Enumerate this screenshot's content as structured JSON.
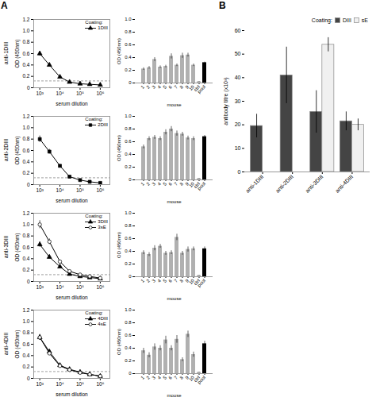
{
  "chart_data": [
    {
      "type": "line",
      "title": "anti-1DIII",
      "annotations": [
        "A"
      ],
      "x": [
        1000,
        3000,
        10000,
        30000,
        100000,
        300000,
        1000000
      ],
      "series": [
        {
          "name": "1DIII",
          "color": "#000000",
          "marker": "triangle",
          "values": [
            0.6,
            0.4,
            0.19,
            0.1,
            0.07,
            0.06,
            0.05
          ],
          "errors": [
            0.042,
            0.028,
            0.0133,
            0.007,
            0.0049,
            0.0042,
            0.0035
          ]
        }
      ],
      "cutoff": 0.12,
      "log": "x",
      "xlim": [
        500,
        3000000
      ],
      "xticks": [
        {
          "value": 1000,
          "label": "10³"
        },
        {
          "value": 10000,
          "label": "10⁴"
        },
        {
          "value": 100000,
          "label": "10⁵"
        },
        {
          "value": 1000000,
          "label": "10⁶"
        }
      ],
      "ylim": [
        0,
        1.2
      ],
      "yticks": [
        0,
        0.2,
        0.4,
        0.6,
        0.8,
        {
          "value": 1.0,
          "label": "1.0"
        },
        1.2
      ],
      "xlabel": "serum dilution",
      "ylabel": "OD (450nm)",
      "legend": "upper right",
      "legend_title": "Coating:"
    },
    {
      "type": "bar",
      "categories": [
        "1",
        "2",
        "3",
        "4",
        "5",
        "6",
        "7",
        "8",
        "9",
        "10",
        "ctrl",
        "pool"
      ],
      "values": [
        0.22,
        0.24,
        0.37,
        0.25,
        0.26,
        0.42,
        0.28,
        0.43,
        0.44,
        0.28,
        0.02,
        0.32
      ],
      "errors": [
        0.02,
        0.02,
        0.03,
        0.02,
        0.02,
        0.04,
        0.02,
        0.04,
        0.03,
        0.02,
        0.005,
        0.01
      ],
      "colors": [
        "#b0b0b0",
        "#b0b0b0",
        "#b0b0b0",
        "#b0b0b0",
        "#b0b0b0",
        "#b0b0b0",
        "#b0b0b0",
        "#b0b0b0",
        "#b0b0b0",
        "#b0b0b0",
        "#b0b0b0",
        "#000000"
      ],
      "ylim": [
        0,
        1.0
      ],
      "yticks": [
        0,
        0.2,
        0.4,
        0.6,
        0.8,
        {
          "value": 1.0,
          "label": "1.0"
        }
      ],
      "xlabel": "mouse",
      "ylabel": "OD (450nm)"
    },
    {
      "type": "line",
      "title": "anti-2DIII",
      "x": [
        1000,
        3000,
        10000,
        30000,
        100000,
        300000,
        1000000
      ],
      "series": [
        {
          "name": "2DIII",
          "color": "#000000",
          "marker": "square",
          "values": [
            0.8,
            0.58,
            0.33,
            0.14,
            0.08,
            0.05,
            0.03
          ],
          "errors": [
            0.056,
            0.0406,
            0.0231,
            0.0098,
            0.0056,
            0.0035,
            0.0021
          ]
        }
      ],
      "cutoff": 0.12,
      "log": "x",
      "xlim": [
        500,
        3000000
      ],
      "xticks": [
        {
          "value": 1000,
          "label": "10³"
        },
        {
          "value": 10000,
          "label": "10⁴"
        },
        {
          "value": 100000,
          "label": "10⁵"
        },
        {
          "value": 1000000,
          "label": "10⁶"
        }
      ],
      "ylim": [
        0,
        1.2
      ],
      "yticks": [
        0,
        0.2,
        0.4,
        0.6,
        0.8,
        {
          "value": 1.0,
          "label": "1.0"
        },
        1.2
      ],
      "xlabel": "serum dilution",
      "ylabel": "OD (450nm)",
      "legend": "upper right",
      "legend_title": "Coating:"
    },
    {
      "type": "bar",
      "categories": [
        "1",
        "2",
        "3",
        "4",
        "5",
        "6",
        "7",
        "8",
        "9",
        "10",
        "ctrl",
        "pool"
      ],
      "values": [
        0.52,
        0.65,
        0.67,
        0.65,
        0.75,
        0.8,
        0.73,
        0.72,
        0.66,
        0.65,
        0.02,
        0.68
      ],
      "errors": [
        0.03,
        0.03,
        0.03,
        0.03,
        0.04,
        0.04,
        0.04,
        0.03,
        0.03,
        0.03,
        0.005,
        0.02
      ],
      "colors": [
        "#b0b0b0",
        "#b0b0b0",
        "#b0b0b0",
        "#b0b0b0",
        "#b0b0b0",
        "#b0b0b0",
        "#b0b0b0",
        "#b0b0b0",
        "#b0b0b0",
        "#b0b0b0",
        "#b0b0b0",
        "#000000"
      ],
      "ylim": [
        0,
        1.0
      ],
      "yticks": [
        0,
        0.2,
        0.4,
        0.6,
        0.8,
        {
          "value": 1.0,
          "label": "1.0"
        }
      ],
      "xlabel": "mouse",
      "ylabel": "OD (450nm)"
    },
    {
      "type": "line",
      "title": "anti-3DIII",
      "x": [
        1000,
        3000,
        10000,
        30000,
        100000,
        300000,
        1000000
      ],
      "series": [
        {
          "name": "3DIII",
          "color": "#000000",
          "marker": "triangle",
          "values": [
            0.65,
            0.43,
            0.26,
            0.13,
            0.09,
            0.07,
            0.05
          ],
          "errors": [
            0.0455,
            0.0301,
            0.0182,
            0.0091,
            0.0063,
            0.0049,
            0.0035
          ]
        },
        {
          "name": "3sE",
          "color": "#000000",
          "marker": "circle-open",
          "values": [
            1.0,
            0.7,
            0.35,
            0.18,
            0.12,
            0.09,
            0.06
          ],
          "errors": [
            0.07,
            0.049,
            0.0245,
            0.0126,
            0.0084,
            0.0063,
            0.0042
          ]
        }
      ],
      "cutoff": 0.12,
      "log": "x",
      "xlim": [
        500,
        3000000
      ],
      "xticks": [
        {
          "value": 1000,
          "label": "10³"
        },
        {
          "value": 10000,
          "label": "10⁴"
        },
        {
          "value": 100000,
          "label": "10⁵"
        },
        {
          "value": 1000000,
          "label": "10⁶"
        }
      ],
      "ylim": [
        0,
        1.2
      ],
      "yticks": [
        0,
        0.2,
        0.4,
        0.6,
        0.8,
        {
          "value": 1.0,
          "label": "1.0"
        },
        1.2
      ],
      "xlabel": "serum dilution",
      "ylabel": "OD (450nm)",
      "legend": "upper right",
      "legend_title": "Coating:"
    },
    {
      "type": "bar",
      "categories": [
        "1",
        "2",
        "3",
        "4",
        "5",
        "6",
        "7",
        "8",
        "9",
        "10",
        "ctrl",
        "pool"
      ],
      "values": [
        0.38,
        0.35,
        0.45,
        0.48,
        0.37,
        0.38,
        0.62,
        0.37,
        0.43,
        0.44,
        0.02,
        0.44
      ],
      "errors": [
        0.03,
        0.03,
        0.04,
        0.03,
        0.03,
        0.03,
        0.05,
        0.03,
        0.04,
        0.03,
        0.005,
        0.03
      ],
      "colors": [
        "#b0b0b0",
        "#b0b0b0",
        "#b0b0b0",
        "#b0b0b0",
        "#b0b0b0",
        "#b0b0b0",
        "#b0b0b0",
        "#b0b0b0",
        "#b0b0b0",
        "#b0b0b0",
        "#b0b0b0",
        "#000000"
      ],
      "ylim": [
        0,
        1.0
      ],
      "yticks": [
        0,
        0.2,
        0.4,
        0.6,
        0.8,
        {
          "value": 1.0,
          "label": "1.0"
        }
      ],
      "xlabel": "mouse",
      "ylabel": "OD (450nm)"
    },
    {
      "type": "line",
      "title": "anti-4DIII",
      "x": [
        1000,
        3000,
        10000,
        30000,
        100000,
        300000,
        1000000
      ],
      "series": [
        {
          "name": "4DIII",
          "color": "#000000",
          "marker": "triangle",
          "values": [
            0.72,
            0.47,
            0.23,
            0.16,
            0.11,
            0.07,
            0.04
          ],
          "errors": [
            0.0504,
            0.0329,
            0.0161,
            0.0112,
            0.0077,
            0.0049,
            0.0028
          ]
        },
        {
          "name": "4sE",
          "color": "#000000",
          "marker": "circle-open",
          "values": [
            0.72,
            0.44,
            0.22,
            0.15,
            0.1,
            0.07,
            0.04
          ],
          "errors": [
            0.0504,
            0.0308,
            0.0154,
            0.0105,
            0.007,
            0.0049,
            0.0028
          ]
        }
      ],
      "cutoff": 0.12,
      "log": "x",
      "xlim": [
        500,
        3000000
      ],
      "xticks": [
        {
          "value": 1000,
          "label": "10³"
        },
        {
          "value": 10000,
          "label": "10⁴"
        },
        {
          "value": 100000,
          "label": "10⁵"
        },
        {
          "value": 1000000,
          "label": "10⁶"
        }
      ],
      "ylim": [
        0,
        1.2
      ],
      "yticks": [
        0,
        0.2,
        0.4,
        0.6,
        0.8,
        {
          "value": 1.0,
          "label": "1.0"
        },
        1.2
      ],
      "xlabel": "serum dilution",
      "ylabel": "OD (450nm)",
      "legend": "upper right",
      "legend_title": "Coating:"
    },
    {
      "type": "bar",
      "categories": [
        "1",
        "2",
        "3",
        "4",
        "5",
        "6",
        "7",
        "8",
        "9",
        "10",
        "ctrl",
        "pool"
      ],
      "values": [
        0.36,
        0.29,
        0.42,
        0.4,
        0.53,
        0.4,
        0.54,
        0.22,
        0.62,
        0.3,
        0.02,
        0.47
      ],
      "errors": [
        0.04,
        0.04,
        0.05,
        0.04,
        0.06,
        0.04,
        0.06,
        0.03,
        0.05,
        0.04,
        0.005,
        0.04
      ],
      "colors": [
        "#b0b0b0",
        "#b0b0b0",
        "#b0b0b0",
        "#b0b0b0",
        "#b0b0b0",
        "#b0b0b0",
        "#b0b0b0",
        "#b0b0b0",
        "#b0b0b0",
        "#b0b0b0",
        "#b0b0b0",
        "#000000"
      ],
      "ylim": [
        0,
        1.0
      ],
      "yticks": [
        0,
        0.2,
        0.4,
        0.6,
        0.8,
        {
          "value": 1.0,
          "label": "1.0"
        }
      ],
      "xlabel": "mouse",
      "ylabel": "OD (450nm)"
    },
    {
      "type": "bar",
      "annotations": [
        "B"
      ],
      "categories": [
        "anti-1DIII",
        "anti-2DIII",
        "anti-3DIII",
        "anti-4DIII"
      ],
      "series": [
        {
          "name": "DIII",
          "color": "#444444",
          "values": [
            19.5,
            41,
            25.5,
            21.5
          ],
          "errors": [
            5,
            12,
            9,
            4
          ]
        },
        {
          "name": "sE",
          "color": "#f0f0f0",
          "values": [
            null,
            null,
            54,
            20
          ],
          "errors": [
            null,
            null,
            3,
            2.5
          ]
        }
      ],
      "ylim": [
        0,
        60
      ],
      "yticks": [
        0,
        10,
        20,
        30,
        40,
        50,
        60
      ],
      "ylabel": "antibody titre (x10³)",
      "legend": "upper right",
      "legend_title": "Coating:"
    }
  ]
}
